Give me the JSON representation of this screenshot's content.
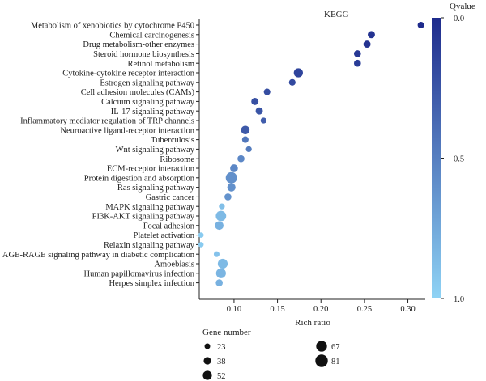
{
  "chart_data": {
    "type": "scatter",
    "title": "",
    "annotation": "KEGG",
    "xlabel": "Rich ratio",
    "ylabel": "",
    "xlim": [
      0.06,
      0.32
    ],
    "xticks": [
      "0.10",
      "0.15",
      "0.20",
      "0.25",
      "0.30"
    ],
    "xtick_values": [
      0.1,
      0.15,
      0.2,
      0.25,
      0.3
    ],
    "categories": [
      "Metabolism of xenobiotics by cytochrome P450",
      "Chemical carcinogenesis",
      "Drug metabolism-other enzymes",
      "Steroid hormone biosynthesis",
      "Retinol metabolism",
      "Cytokine-cytokine receptor interaction",
      "Estrogen signaling pathway",
      "Cell adhesion molecules (CAMs)",
      "Calcium signaling pathway",
      "IL-17 signaling pathway",
      "Inflammatory mediator regulation of TRP channels",
      "Neuroactive ligand-receptor interaction",
      "Tuberculosis",
      "Wnt signaling pathway",
      "Ribosome",
      "ECM-receptor interaction",
      "Protein digestion and absorption",
      "Ras signaling pathway",
      "Gastric cancer",
      "MAPK signaling pathway",
      "PI3K-AKT signaling pathway",
      "Focal adhesion",
      "Platelet activation",
      "Relaxin signaling pathway",
      "AGE-RAGE signaling pathway in diabetic complication",
      "Amoebiasis",
      "Human papillomavirus infection",
      "Herpes simplex infection"
    ],
    "rich_ratio": [
      0.315,
      0.258,
      0.253,
      0.242,
      0.242,
      0.174,
      0.167,
      0.138,
      0.124,
      0.129,
      0.134,
      0.113,
      0.113,
      0.117,
      0.108,
      0.1,
      0.097,
      0.097,
      0.093,
      0.086,
      0.085,
      0.083,
      0.062,
      0.062,
      0.08,
      0.087,
      0.085,
      0.083
    ],
    "qvalue": [
      0.0,
      0.05,
      0.05,
      0.08,
      0.1,
      0.15,
      0.18,
      0.2,
      0.22,
      0.25,
      0.3,
      0.28,
      0.45,
      0.48,
      0.55,
      0.55,
      0.6,
      0.6,
      0.62,
      0.88,
      0.85,
      0.8,
      0.95,
      0.95,
      0.9,
      0.85,
      0.82,
      0.8
    ],
    "gene_number": [
      36,
      42,
      42,
      40,
      40,
      60,
      36,
      36,
      42,
      42,
      30,
      55,
      36,
      30,
      40,
      48,
      81,
      52,
      40,
      30,
      72,
      55,
      25,
      25,
      28,
      67,
      67,
      40
    ],
    "color_scale": {
      "title": "Qvalue",
      "min": 0.0,
      "max": 1.0,
      "ticks": [
        "0.0",
        "0.5",
        "1.0"
      ],
      "low_color": "#1e2b8c",
      "high_color": "#8fd3f5"
    },
    "size_legend": {
      "title": "Gene number",
      "values": [
        23,
        38,
        52,
        67,
        81
      ]
    },
    "grid": false,
    "legend_placement": "right"
  }
}
